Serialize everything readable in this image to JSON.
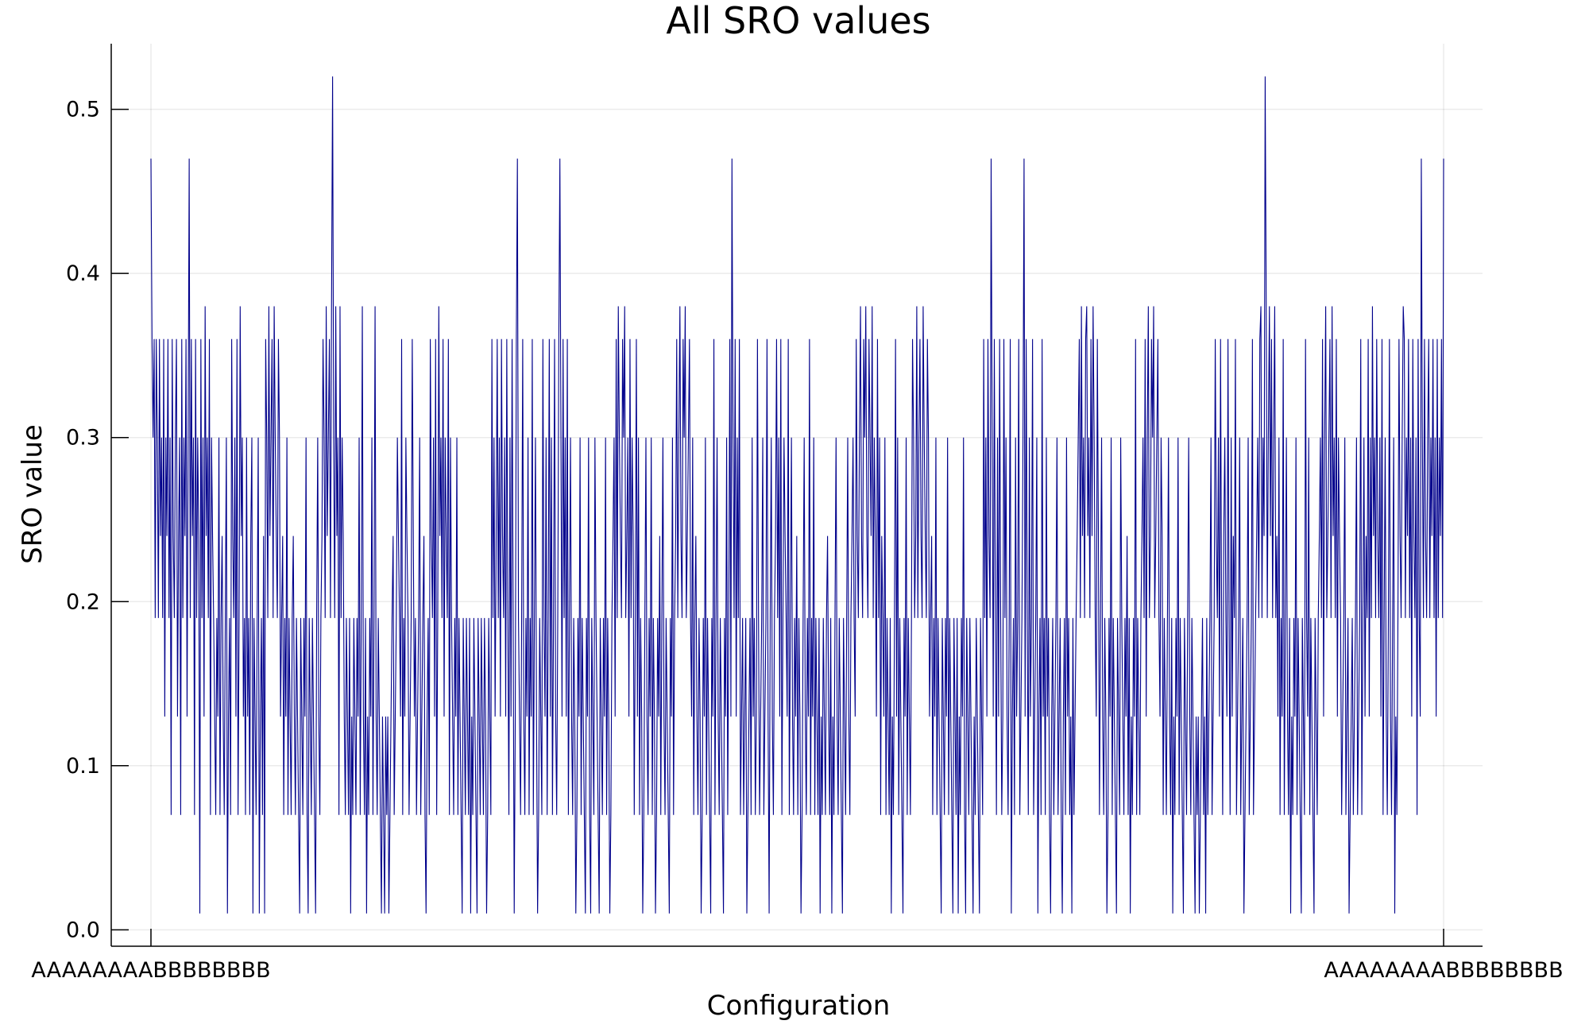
{
  "chart_data": {
    "type": "line",
    "title": "All SRO values",
    "xlabel": "Configuration",
    "ylabel": "SRO value",
    "ylim": [
      -0.01,
      0.54
    ],
    "y_ticks": [
      0.0,
      0.1,
      0.2,
      0.3,
      0.4,
      0.5
    ],
    "y_tick_labels": [
      "0.0",
      "0.1",
      "0.2",
      "0.3",
      "0.4",
      "0.5"
    ],
    "x_tick_labels": [
      "AAAAAAAABBBBBBBB",
      "AAAAAAAABBBBBBBB"
    ],
    "grid": true,
    "legend": "none",
    "series": [
      {
        "color": "#00008b",
        "values": [
          0.47,
          0.36,
          0.3,
          0.36,
          0.19,
          0.36,
          0.3,
          0.19,
          0.36,
          0.24,
          0.3,
          0.19,
          0.36,
          0.13,
          0.3,
          0.24,
          0.36,
          0.19,
          0.3,
          0.07,
          0.36,
          0.24,
          0.19,
          0.3,
          0.36,
          0.13,
          0.24,
          0.3,
          0.07,
          0.36,
          0.19,
          0.3,
          0.24,
          0.36,
          0.13,
          0.3,
          0.47,
          0.19,
          0.36,
          0.24,
          0.3,
          0.07,
          0.36,
          0.19,
          0.3,
          0.24,
          0.01,
          0.36,
          0.19,
          0.3,
          0.13,
          0.38,
          0.24,
          0.3,
          0.19,
          0.36,
          0.07,
          0.3,
          0.24,
          0.19,
          0.13,
          0.07,
          0.19,
          0.13,
          0.3,
          0.07,
          0.19,
          0.24,
          0.13,
          0.07,
          0.19,
          0.3,
          0.01,
          0.13,
          0.19,
          0.07,
          0.36,
          0.24,
          0.19,
          0.3,
          0.13,
          0.36,
          0.07,
          0.19,
          0.38,
          0.24,
          0.3,
          0.13,
          0.19,
          0.07,
          0.3,
          0.13,
          0.19,
          0.07,
          0.24,
          0.3,
          0.01,
          0.19,
          0.13,
          0.07,
          0.19,
          0.3,
          0.01,
          0.13,
          0.19,
          0.07,
          0.24,
          0.01,
          0.36,
          0.3,
          0.19,
          0.38,
          0.24,
          0.3,
          0.36,
          0.19,
          0.38,
          0.3,
          0.24,
          0.19,
          0.36,
          0.3,
          0.13,
          0.19,
          0.24,
          0.07,
          0.19,
          0.13,
          0.3,
          0.07,
          0.19,
          0.13,
          0.07,
          0.19,
          0.24,
          0.13,
          0.07,
          0.19,
          0.13,
          0.07,
          0.01,
          0.19,
          0.13,
          0.07,
          0.19,
          0.13,
          0.3,
          0.07,
          0.01,
          0.19,
          0.13,
          0.07,
          0.19,
          0.13,
          0.07,
          0.01,
          0.19,
          0.3,
          0.13,
          0.07,
          0.19,
          0.24,
          0.36,
          0.3,
          0.19,
          0.38,
          0.24,
          0.3,
          0.36,
          0.19,
          0.38,
          0.52,
          0.3,
          0.19,
          0.38,
          0.24,
          0.3,
          0.07,
          0.38,
          0.19,
          0.3,
          0.24,
          0.13,
          0.07,
          0.19,
          0.13,
          0.07,
          0.19,
          0.01,
          0.13,
          0.07,
          0.19,
          0.13,
          0.07,
          0.19,
          0.13,
          0.3,
          0.07,
          0.19,
          0.38,
          0.13,
          0.07,
          0.19,
          0.01,
          0.13,
          0.07,
          0.19,
          0.13,
          0.3,
          0.07,
          0.19,
          0.38,
          0.13,
          0.07,
          0.19,
          0.13,
          0.07,
          0.01,
          0.13,
          0.07,
          0.01,
          0.13,
          0.07,
          0.13,
          0.01,
          0.07,
          0.13,
          0.19,
          0.24,
          0.07,
          0.13,
          0.19,
          0.3,
          0.24,
          0.19,
          0.13,
          0.36,
          0.07,
          0.19,
          0.13,
          0.3,
          0.24,
          0.19,
          0.07,
          0.13,
          0.19,
          0.36,
          0.24,
          0.13,
          0.19,
          0.07,
          0.13,
          0.19,
          0.3,
          0.07,
          0.13,
          0.19,
          0.24,
          0.07,
          0.01,
          0.13,
          0.19,
          0.07,
          0.36,
          0.24,
          0.19,
          0.3,
          0.13,
          0.36,
          0.07,
          0.19,
          0.38,
          0.24,
          0.3,
          0.19,
          0.36,
          0.13,
          0.3,
          0.24,
          0.19,
          0.36,
          0.07,
          0.3,
          0.19,
          0.13,
          0.07,
          0.19,
          0.13,
          0.3,
          0.07,
          0.19,
          0.13,
          0.07,
          0.01,
          0.19,
          0.13,
          0.07,
          0.19,
          0.13,
          0.07,
          0.19,
          0.01,
          0.13,
          0.07,
          0.19,
          0.13,
          0.07,
          0.01,
          0.19,
          0.13,
          0.07,
          0.19,
          0.13,
          0.07,
          0.19,
          0.13,
          0.01,
          0.07,
          0.19,
          0.13,
          0.07,
          0.36,
          0.19,
          0.3,
          0.13,
          0.24,
          0.36,
          0.19,
          0.3,
          0.13,
          0.36,
          0.24,
          0.19,
          0.3,
          0.13,
          0.36,
          0.19,
          0.07,
          0.3,
          0.13,
          0.36,
          0.19,
          0.01,
          0.13,
          0.36,
          0.47,
          0.19,
          0.13,
          0.07,
          0.19,
          0.36,
          0.13,
          0.07,
          0.19,
          0.13,
          0.3,
          0.07,
          0.19,
          0.13,
          0.36,
          0.07,
          0.19,
          0.3,
          0.13,
          0.01,
          0.07,
          0.19,
          0.13,
          0.07,
          0.36,
          0.19,
          0.13,
          0.3,
          0.07,
          0.19,
          0.36,
          0.13,
          0.3,
          0.07,
          0.19,
          0.36,
          0.13,
          0.07,
          0.19,
          0.36,
          0.47,
          0.3,
          0.13,
          0.36,
          0.19,
          0.3,
          0.13,
          0.36,
          0.07,
          0.19,
          0.3,
          0.13,
          0.07,
          0.19,
          0.13,
          0.01,
          0.07,
          0.19,
          0.13,
          0.3,
          0.07,
          0.19,
          0.13,
          0.07,
          0.01,
          0.19,
          0.13,
          0.3,
          0.07,
          0.01,
          0.19,
          0.13,
          0.07,
          0.3,
          0.19,
          0.13,
          0.07,
          0.01,
          0.19,
          0.13,
          0.07,
          0.19,
          0.13,
          0.3,
          0.07,
          0.19,
          0.13,
          0.01,
          0.07,
          0.19,
          0.24,
          0.3,
          0.13,
          0.36,
          0.19,
          0.38,
          0.3,
          0.24,
          0.19,
          0.36,
          0.3,
          0.38,
          0.19,
          0.24,
          0.3,
          0.13,
          0.36,
          0.19,
          0.3,
          0.24,
          0.07,
          0.19,
          0.36,
          0.13,
          0.3,
          0.07,
          0.19,
          0.13,
          0.01,
          0.07,
          0.19,
          0.3,
          0.13,
          0.07,
          0.19,
          0.13,
          0.3,
          0.07,
          0.19,
          0.13,
          0.01,
          0.07,
          0.19,
          0.13,
          0.24,
          0.07,
          0.19,
          0.3,
          0.13,
          0.07,
          0.19,
          0.13,
          0.07,
          0.01,
          0.19,
          0.13,
          0.3,
          0.07,
          0.19,
          0.24,
          0.36,
          0.19,
          0.3,
          0.38,
          0.24,
          0.19,
          0.36,
          0.3,
          0.38,
          0.19,
          0.24,
          0.3,
          0.36,
          0.19,
          0.13,
          0.3,
          0.07,
          0.19,
          0.24,
          0.13,
          0.07,
          0.19,
          0.13,
          0.01,
          0.07,
          0.19,
          0.13,
          0.3,
          0.07,
          0.19,
          0.13,
          0.07,
          0.01,
          0.19,
          0.13,
          0.36,
          0.07,
          0.19,
          0.3,
          0.13,
          0.07,
          0.19,
          0.13,
          0.07,
          0.01,
          0.19,
          0.13,
          0.3,
          0.07,
          0.19,
          0.36,
          0.13,
          0.47,
          0.3,
          0.19,
          0.36,
          0.13,
          0.3,
          0.19,
          0.36,
          0.07,
          0.13,
          0.19,
          0.07,
          0.13,
          0.19,
          0.01,
          0.07,
          0.13,
          0.19,
          0.07,
          0.3,
          0.13,
          0.19,
          0.07,
          0.13,
          0.36,
          0.19,
          0.07,
          0.13,
          0.19,
          0.3,
          0.07,
          0.13,
          0.19,
          0.36,
          0.13,
          0.01,
          0.19,
          0.3,
          0.13,
          0.07,
          0.19,
          0.24,
          0.36,
          0.19,
          0.3,
          0.13,
          0.36,
          0.07,
          0.19,
          0.3,
          0.24,
          0.19,
          0.13,
          0.36,
          0.07,
          0.19,
          0.3,
          0.13,
          0.07,
          0.19,
          0.13,
          0.24,
          0.07,
          0.19,
          0.13,
          0.01,
          0.07,
          0.19,
          0.3,
          0.13,
          0.07,
          0.19,
          0.13,
          0.36,
          0.07,
          0.19,
          0.13,
          0.3,
          0.07,
          0.19,
          0.13,
          0.07,
          0.19,
          0.01,
          0.13,
          0.07,
          0.19,
          0.13,
          0.07,
          0.19,
          0.24,
          0.13,
          0.07,
          0.19,
          0.01,
          0.13,
          0.07,
          0.19,
          0.3,
          0.13,
          0.07,
          0.19,
          0.13,
          0.07,
          0.01,
          0.19,
          0.13,
          0.07,
          0.19,
          0.3,
          0.13,
          0.07,
          0.19,
          0.24,
          0.3,
          0.19,
          0.13,
          0.36,
          0.24,
          0.19,
          0.3,
          0.38,
          0.24,
          0.19,
          0.36,
          0.3,
          0.38,
          0.24,
          0.19,
          0.36,
          0.3,
          0.24,
          0.38,
          0.19,
          0.3,
          0.24,
          0.13,
          0.36,
          0.19,
          0.3,
          0.07,
          0.24,
          0.19,
          0.13,
          0.3,
          0.07,
          0.19,
          0.13,
          0.07,
          0.19,
          0.01,
          0.13,
          0.07,
          0.19,
          0.36,
          0.13,
          0.3,
          0.07,
          0.19,
          0.13,
          0.07,
          0.01,
          0.19,
          0.13,
          0.3,
          0.07,
          0.19,
          0.13,
          0.07,
          0.19,
          0.36,
          0.3,
          0.19,
          0.24,
          0.38,
          0.19,
          0.3,
          0.36,
          0.24,
          0.19,
          0.38,
          0.3,
          0.24,
          0.19,
          0.36,
          0.3,
          0.13,
          0.19,
          0.24,
          0.07,
          0.19,
          0.13,
          0.3,
          0.07,
          0.19,
          0.13,
          0.07,
          0.01,
          0.19,
          0.13,
          0.07,
          0.19,
          0.13,
          0.3,
          0.07,
          0.19,
          0.13,
          0.07,
          0.01,
          0.19,
          0.13,
          0.07,
          0.19,
          0.01,
          0.13,
          0.07,
          0.19,
          0.13,
          0.3,
          0.07,
          0.01,
          0.19,
          0.13,
          0.07,
          0.19,
          0.13,
          0.07,
          0.01,
          0.13,
          0.07,
          0.19,
          0.13,
          0.07,
          0.01,
          0.19,
          0.13,
          0.07,
          0.36,
          0.19,
          0.3,
          0.13,
          0.36,
          0.24,
          0.19,
          0.47,
          0.3,
          0.13,
          0.36,
          0.19,
          0.07,
          0.3,
          0.13,
          0.36,
          0.19,
          0.07,
          0.13,
          0.36,
          0.19,
          0.3,
          0.13,
          0.07,
          0.19,
          0.36,
          0.01,
          0.13,
          0.19,
          0.07,
          0.3,
          0.13,
          0.19,
          0.36,
          0.07,
          0.13,
          0.19,
          0.3,
          0.47,
          0.13,
          0.36,
          0.19,
          0.07,
          0.3,
          0.13,
          0.19,
          0.36,
          0.07,
          0.13,
          0.19,
          0.3,
          0.01,
          0.13,
          0.19,
          0.07,
          0.36,
          0.13,
          0.19,
          0.07,
          0.3,
          0.13,
          0.19,
          0.07,
          0.01,
          0.13,
          0.19,
          0.07,
          0.13,
          0.19,
          0.3,
          0.07,
          0.13,
          0.19,
          0.07,
          0.01,
          0.13,
          0.19,
          0.07,
          0.3,
          0.13,
          0.19,
          0.07,
          0.13,
          0.01,
          0.19,
          0.07,
          0.13,
          0.19,
          0.24,
          0.3,
          0.36,
          0.19,
          0.38,
          0.24,
          0.3,
          0.19,
          0.36,
          0.38,
          0.24,
          0.3,
          0.19,
          0.36,
          0.24,
          0.38,
          0.3,
          0.19,
          0.13,
          0.36,
          0.24,
          0.07,
          0.19,
          0.3,
          0.13,
          0.07,
          0.19,
          0.13,
          0.01,
          0.07,
          0.19,
          0.13,
          0.3,
          0.07,
          0.19,
          0.13,
          0.07,
          0.01,
          0.19,
          0.13,
          0.07,
          0.3,
          0.19,
          0.13,
          0.07,
          0.19,
          0.13,
          0.24,
          0.07,
          0.19,
          0.01,
          0.13,
          0.07,
          0.19,
          0.13,
          0.36,
          0.07,
          0.19,
          0.13,
          0.07,
          0.19,
          0.24,
          0.3,
          0.19,
          0.36,
          0.13,
          0.3,
          0.38,
          0.19,
          0.24,
          0.36,
          0.3,
          0.38,
          0.19,
          0.24,
          0.3,
          0.36,
          0.19,
          0.13,
          0.3,
          0.24,
          0.07,
          0.19,
          0.13,
          0.07,
          0.19,
          0.3,
          0.13,
          0.07,
          0.19,
          0.01,
          0.13,
          0.07,
          0.19,
          0.13,
          0.3,
          0.07,
          0.19,
          0.13,
          0.07,
          0.01,
          0.19,
          0.13,
          0.07,
          0.19,
          0.3,
          0.13,
          0.07,
          0.19,
          0.13,
          0.07,
          0.01,
          0.13,
          0.07,
          0.13,
          0.01,
          0.07,
          0.13,
          0.19,
          0.07,
          0.13,
          0.01,
          0.19,
          0.07,
          0.13,
          0.19,
          0.3,
          0.07,
          0.13,
          0.19,
          0.36,
          0.24,
          0.19,
          0.3,
          0.13,
          0.36,
          0.19,
          0.07,
          0.24,
          0.3,
          0.19,
          0.13,
          0.36,
          0.19,
          0.07,
          0.3,
          0.13,
          0.24,
          0.19,
          0.36,
          0.07,
          0.13,
          0.19,
          0.3,
          0.07,
          0.13,
          0.19,
          0.01,
          0.07,
          0.13,
          0.19,
          0.3,
          0.07,
          0.13,
          0.19,
          0.36,
          0.07,
          0.13,
          0.19,
          0.24,
          0.3,
          0.19,
          0.36,
          0.38,
          0.19,
          0.3,
          0.24,
          0.52,
          0.38,
          0.19,
          0.3,
          0.38,
          0.24,
          0.36,
          0.19,
          0.3,
          0.38,
          0.19,
          0.24,
          0.13,
          0.3,
          0.07,
          0.19,
          0.13,
          0.36,
          0.07,
          0.19,
          0.3,
          0.13,
          0.07,
          0.19,
          0.01,
          0.13,
          0.07,
          0.19,
          0.13,
          0.3,
          0.07,
          0.19,
          0.13,
          0.07,
          0.01,
          0.19,
          0.13,
          0.07,
          0.36,
          0.19,
          0.13,
          0.3,
          0.07,
          0.19,
          0.13,
          0.07,
          0.01,
          0.19,
          0.13,
          0.07,
          0.19,
          0.24,
          0.3,
          0.19,
          0.36,
          0.13,
          0.3,
          0.38,
          0.19,
          0.24,
          0.3,
          0.36,
          0.19,
          0.38,
          0.24,
          0.3,
          0.19,
          0.36,
          0.13,
          0.3,
          0.24,
          0.19,
          0.07,
          0.13,
          0.19,
          0.3,
          0.07,
          0.13,
          0.19,
          0.01,
          0.07,
          0.13,
          0.19,
          0.07,
          0.13,
          0.19,
          0.3,
          0.07,
          0.13,
          0.19,
          0.36,
          0.07,
          0.19,
          0.3,
          0.13,
          0.24,
          0.19,
          0.36,
          0.13,
          0.3,
          0.19,
          0.38,
          0.24,
          0.3,
          0.19,
          0.36,
          0.24,
          0.19,
          0.3,
          0.13,
          0.36,
          0.07,
          0.19,
          0.3,
          0.13,
          0.07,
          0.19,
          0.36,
          0.13,
          0.07,
          0.19,
          0.3,
          0.01,
          0.13,
          0.07,
          0.19,
          0.36,
          0.24,
          0.19,
          0.3,
          0.38,
          0.36,
          0.19,
          0.3,
          0.24,
          0.36,
          0.19,
          0.3,
          0.13,
          0.36,
          0.24,
          0.19,
          0.3,
          0.07,
          0.36,
          0.19,
          0.13,
          0.47,
          0.3,
          0.19,
          0.36,
          0.24,
          0.19,
          0.3,
          0.36,
          0.19,
          0.3,
          0.24,
          0.36,
          0.19,
          0.3,
          0.13,
          0.36,
          0.19,
          0.3,
          0.24,
          0.36,
          0.19,
          0.47
        ]
      }
    ]
  }
}
